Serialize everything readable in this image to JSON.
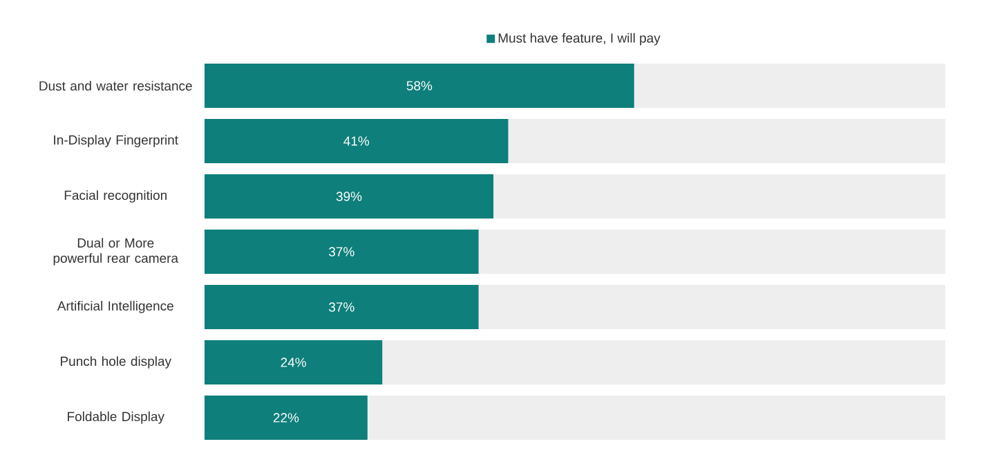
{
  "chart_data": {
    "type": "bar",
    "orientation": "horizontal",
    "stacked": true,
    "legend": "top",
    "categories": [
      "Dust and water resistance",
      "In-Display Fingerprint",
      "Facial recognition",
      "Dual or More powerful rear camera",
      "Artificial Intelligence",
      "Punch hole display",
      "Foldable Display"
    ],
    "series": [
      {
        "name": "Must have feature, I will pay",
        "color": "#0e7f7a",
        "values": [
          58,
          41,
          39,
          37,
          37,
          24,
          22
        ],
        "value_labels": [
          "58%",
          "41%",
          "39%",
          "37%",
          "37%",
          "24%",
          "22%"
        ]
      },
      {
        "color": "#eeeeee",
        "values": [
          42,
          59,
          61,
          63,
          63,
          76,
          78
        ]
      }
    ]
  }
}
